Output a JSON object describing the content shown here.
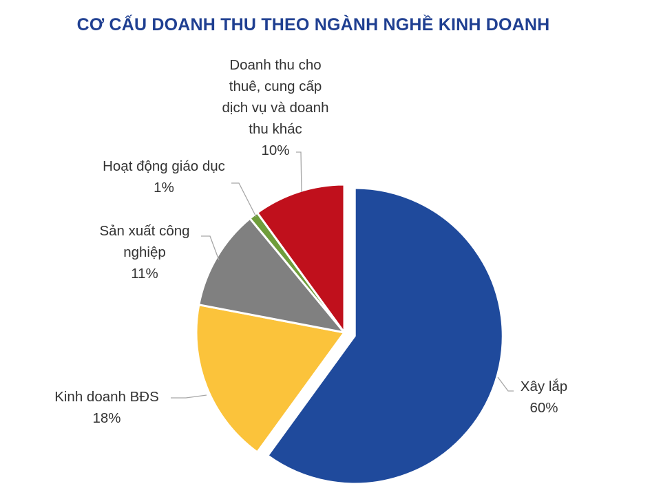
{
  "colors": {
    "title": "#1f3f91",
    "leader": "#a6a6a6",
    "text": "#333333"
  },
  "chart_data": {
    "type": "pie",
    "title": "CƠ CẤU DOANH THU THEO NGÀNH NGHỀ KINH DOANH",
    "legend": "none",
    "slices": [
      {
        "label": "Xây lắp",
        "value": 60,
        "pct_label": "60%",
        "color": "#1f4a9c",
        "exploded": true
      },
      {
        "label": "Kinh doanh BĐS",
        "value": 18,
        "pct_label": "18%",
        "color": "#fbc33b",
        "exploded": false
      },
      {
        "label": "Sản xuất công nghiệp",
        "value": 11,
        "pct_label": "11%",
        "color": "#808080",
        "exploded": false
      },
      {
        "label": "Hoạt động giáo dục",
        "value": 1,
        "pct_label": "1%",
        "color": "#6f9d3b",
        "exploded": false
      },
      {
        "label": "Doanh thu cho thuê, cung cấp dịch vụ và doanh thu khác",
        "value": 10,
        "pct_label": "10%",
        "color": "#c0101c",
        "exploded": false
      }
    ]
  },
  "labels": {
    "xay_lap": {
      "l1": "Xây lắp",
      "pct": "60%"
    },
    "bds": {
      "l1": "Kinh doanh BĐS",
      "pct": "18%"
    },
    "sx": {
      "l1": "Sản xuất công",
      "l2": "nghiệp",
      "pct": "11%"
    },
    "gd": {
      "l1": "Hoạt động giáo dục",
      "pct": "1%"
    },
    "dv": {
      "l1": "Doanh thu cho",
      "l2": "thuê, cung cấp",
      "l3": "dịch vụ và doanh",
      "l4": "thu khác",
      "pct": "10%"
    }
  }
}
